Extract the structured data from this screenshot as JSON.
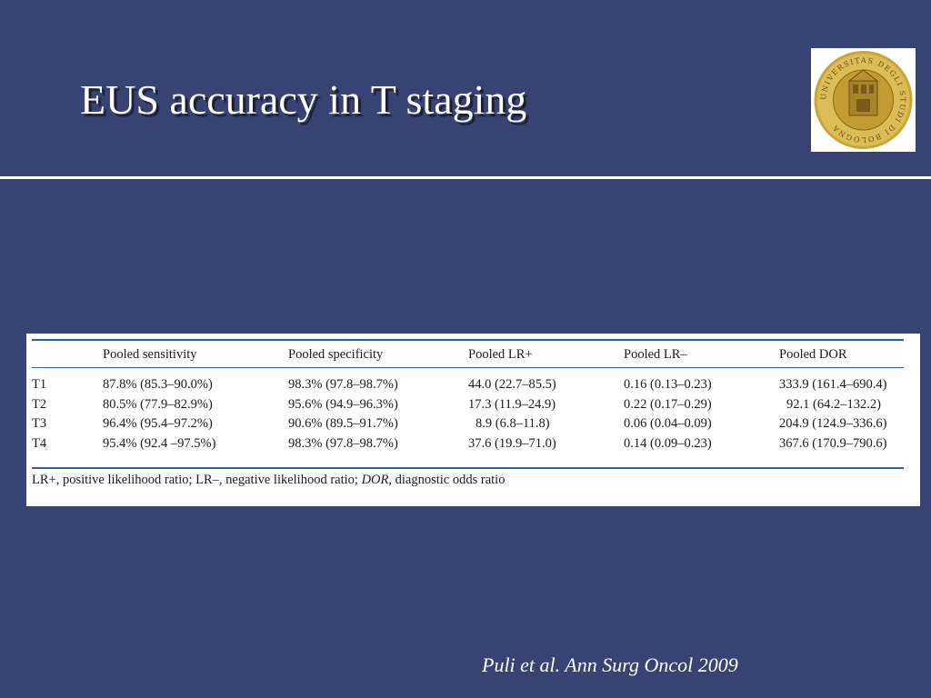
{
  "slide": {
    "title": "EUS accuracy in T staging",
    "citation": "Puli et al. Ann Surg Oncol 2009",
    "background_color": "#384374",
    "logo_icon": "university-of-bologna-seal",
    "logo_text": "UNIVERSITAS DEGLI STUDI DI BOLOGNA"
  },
  "table": {
    "columns": [
      "",
      "Pooled sensitivity",
      "Pooled specificity",
      "Pooled LR+",
      "Pooled LR–",
      "Pooled DOR"
    ],
    "rows": [
      {
        "stage": "T1",
        "sensitivity": "87.8% (85.3–90.0%)",
        "specificity": "98.3% (97.8–98.7%)",
        "lr_pos": "44.0 (22.7–85.5)",
        "lr_neg": "0.16 (0.13–0.23)",
        "dor": "333.9 (161.4–690.4)"
      },
      {
        "stage": "T2",
        "sensitivity": "80.5% (77.9–82.9%)",
        "specificity": "95.6% (94.9–96.3%)",
        "lr_pos": "17.3 (11.9–24.9)",
        "lr_neg": "0.22 (0.17–0.29)",
        "dor": "92.1 (64.2–132.2)"
      },
      {
        "stage": "T3",
        "sensitivity": "96.4% (95.4–97.2%)",
        "specificity": "90.6% (89.5–91.7%)",
        "lr_pos": "8.9 (6.8–11.8)",
        "lr_neg": "0.06 (0.04–0.09)",
        "dor": "204.9 (124.9–336.6)"
      },
      {
        "stage": "T4",
        "sensitivity": "95.4% (92.4 –97.5%)",
        "specificity": "98.3% (97.8–98.7%)",
        "lr_pos": "37.6 (19.9–71.0)",
        "lr_neg": "0.14 (0.09–0.23)",
        "dor": "367.6 (170.9–790.6)"
      }
    ],
    "footnote": {
      "part1": "LR+, positive likelihood ratio; LR–, negative likelihood ratio; ",
      "part2": "DOR",
      "part3": ", diagnostic odds ratio"
    },
    "rule_color": "#2b64a3"
  }
}
